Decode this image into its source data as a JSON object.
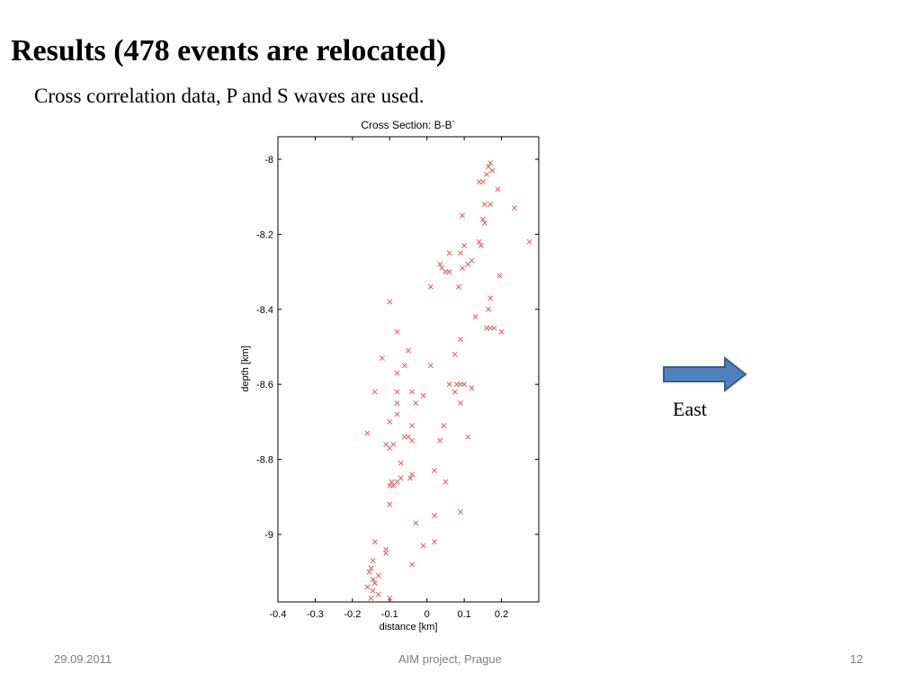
{
  "slide": {
    "title": "Results (478 events are relocated)",
    "subtitle": "Cross correlation data, P and S waves are used.",
    "east_label": "East",
    "footer": {
      "date": "29.09.2011",
      "center": "AIM project, Prague",
      "page": "12"
    }
  },
  "colors": {
    "marker": "#e05050",
    "arrow_fill": "#4f81bd",
    "arrow_stroke": "#385d8a"
  },
  "chart_data": {
    "type": "scatter",
    "title": "Cross Section: B-B`",
    "xlabel": "distance [km]",
    "ylabel": "depth [km]",
    "xlim": [
      -0.4,
      0.3
    ],
    "ylim": [
      -9.18,
      -7.94
    ],
    "xticks": [
      -0.4,
      -0.3,
      -0.2,
      -0.1,
      0,
      0.1,
      0.2
    ],
    "xtick_labels": [
      "-0.4",
      "-0.3",
      "-0.2",
      "-0.1",
      "0",
      "0.1",
      "0.2"
    ],
    "yticks": [
      -8,
      -8.2,
      -8.4,
      -8.6,
      -8.8,
      -9
    ],
    "ytick_labels": [
      "-8",
      "-8.2",
      "-8.4",
      "-8.6",
      "-8.8",
      "-9"
    ],
    "grid": false,
    "marker": "x",
    "points": [
      [
        0.17,
        -8.01
      ],
      [
        0.165,
        -8.02
      ],
      [
        0.16,
        -8.04
      ],
      [
        0.15,
        -8.06
      ],
      [
        0.14,
        -8.06
      ],
      [
        0.175,
        -8.03
      ],
      [
        0.19,
        -8.08
      ],
      [
        0.155,
        -8.12
      ],
      [
        0.17,
        -8.12
      ],
      [
        0.235,
        -8.13
      ],
      [
        0.15,
        -8.16
      ],
      [
        0.155,
        -8.17
      ],
      [
        0.095,
        -8.15
      ],
      [
        0.275,
        -8.22
      ],
      [
        0.14,
        -8.22
      ],
      [
        0.145,
        -8.23
      ],
      [
        0.1,
        -8.23
      ],
      [
        0.09,
        -8.25
      ],
      [
        0.06,
        -8.25
      ],
      [
        0.11,
        -8.28
      ],
      [
        0.095,
        -8.29
      ],
      [
        0.12,
        -8.27
      ],
      [
        0.035,
        -8.28
      ],
      [
        0.04,
        -8.29
      ],
      [
        0.05,
        -8.3
      ],
      [
        0.06,
        -8.3
      ],
      [
        0.195,
        -8.31
      ],
      [
        0.01,
        -8.34
      ],
      [
        0.085,
        -8.34
      ],
      [
        0.17,
        -8.37
      ],
      [
        0.165,
        -8.4
      ],
      [
        0.13,
        -8.42
      ],
      [
        0.17,
        -8.45
      ],
      [
        0.18,
        -8.45
      ],
      [
        0.2,
        -8.46
      ],
      [
        0.16,
        -8.45
      ],
      [
        -0.1,
        -8.38
      ],
      [
        -0.08,
        -8.46
      ],
      [
        0.09,
        -8.48
      ],
      [
        -0.05,
        -8.51
      ],
      [
        0.075,
        -8.52
      ],
      [
        -0.12,
        -8.53
      ],
      [
        -0.06,
        -8.55
      ],
      [
        0.01,
        -8.55
      ],
      [
        -0.08,
        -8.57
      ],
      [
        0.06,
        -8.6
      ],
      [
        0.08,
        -8.6
      ],
      [
        0.09,
        -8.6
      ],
      [
        0.1,
        -8.6
      ],
      [
        0.12,
        -8.61
      ],
      [
        -0.04,
        -8.62
      ],
      [
        -0.08,
        -8.62
      ],
      [
        -0.14,
        -8.62
      ],
      [
        -0.01,
        -8.63
      ],
      [
        0.075,
        -8.62
      ],
      [
        -0.03,
        -8.65
      ],
      [
        -0.08,
        -8.65
      ],
      [
        0.09,
        -8.65
      ],
      [
        -0.08,
        -8.68
      ],
      [
        -0.1,
        -8.7
      ],
      [
        0.045,
        -8.71
      ],
      [
        -0.04,
        -8.71
      ],
      [
        -0.06,
        -8.74
      ],
      [
        -0.05,
        -8.74
      ],
      [
        -0.04,
        -8.75
      ],
      [
        -0.16,
        -8.73
      ],
      [
        0.11,
        -8.74
      ],
      [
        0.035,
        -8.75
      ],
      [
        -0.09,
        -8.76
      ],
      [
        -0.11,
        -8.76
      ],
      [
        -0.1,
        -8.77
      ],
      [
        -0.07,
        -8.81
      ],
      [
        0.02,
        -8.83
      ],
      [
        -0.04,
        -8.84
      ],
      [
        -0.045,
        -8.85
      ],
      [
        -0.07,
        -8.85
      ],
      [
        -0.08,
        -8.86
      ],
      [
        -0.095,
        -8.86
      ],
      [
        -0.1,
        -8.87
      ],
      [
        -0.09,
        -8.87
      ],
      [
        0.05,
        -8.86
      ],
      [
        -0.1,
        -8.92
      ],
      [
        0.09,
        -8.94
      ],
      [
        0.02,
        -8.95
      ],
      [
        -0.03,
        -8.97
      ],
      [
        -0.01,
        -9.03
      ],
      [
        0.02,
        -9.02
      ],
      [
        -0.14,
        -9.02
      ],
      [
        -0.11,
        -9.04
      ],
      [
        -0.11,
        -9.05
      ],
      [
        -0.04,
        -9.08
      ],
      [
        -0.145,
        -9.07
      ],
      [
        -0.15,
        -9.09
      ],
      [
        -0.155,
        -9.1
      ],
      [
        -0.13,
        -9.11
      ],
      [
        -0.145,
        -9.12
      ],
      [
        -0.14,
        -9.13
      ],
      [
        -0.16,
        -9.14
      ],
      [
        -0.145,
        -9.15
      ],
      [
        -0.13,
        -9.16
      ],
      [
        -0.15,
        -9.17
      ],
      [
        -0.1,
        -9.17
      ]
    ]
  }
}
